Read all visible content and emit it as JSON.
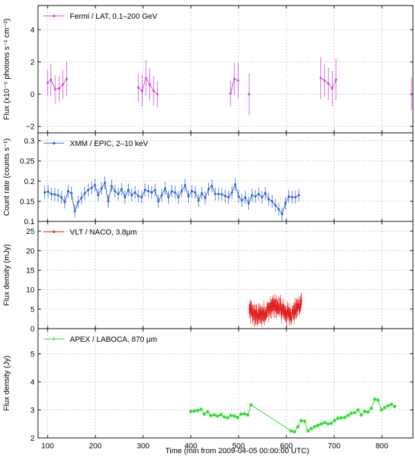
{
  "chart_data": {
    "type": "line",
    "xlabel": "Time (min from 2009-04-05 00:00:00 UTC)",
    "xlim": [
      80,
      865
    ],
    "xticks": [
      100,
      200,
      300,
      400,
      500,
      600,
      700,
      800
    ],
    "panels": [
      {
        "id": "fermi",
        "legend": "Fermi / LAT, 0.1–200 GeV",
        "ylabel": "Flux (x10⁻⁵ photons s⁻¹ cm⁻²)",
        "color": "#d040d0",
        "marker": "dot",
        "ylim": [
          -2.4,
          5.5
        ],
        "yticks": [
          -2,
          0,
          2,
          4
        ],
        "ytick_labels": [
          "−2",
          "0",
          "2",
          "4"
        ],
        "series": [
          {
            "x": [
              100,
              107,
              116,
              124,
              132,
              140
            ],
            "y": [
              0.7,
              0.9,
              0.3,
              0.35,
              0.6,
              0.95
            ],
            "err": [
              0.8,
              1.0,
              0.9,
              0.8,
              0.9,
              1.1
            ]
          },
          {
            "x": [
              290,
              298,
              306,
              314,
              322,
              330
            ],
            "y": [
              0.4,
              0.2,
              1.0,
              0.6,
              0.2,
              0.0
            ],
            "err": [
              0.9,
              1.0,
              1.1,
              1.0,
              0.9,
              0.8
            ]
          },
          {
            "x": [
              483,
              491,
              499
            ],
            "y": [
              0.05,
              0.95,
              0.85
            ],
            "err": [
              0.8,
              1.0,
              1.1
            ]
          },
          {
            "x": [
              522
            ],
            "y": [
              0.0
            ],
            "err": [
              1.3
            ]
          },
          {
            "x": [
              672,
              680,
              688,
              696,
              704
            ],
            "y": [
              1.0,
              0.85,
              0.65,
              0.35,
              0.9
            ],
            "err": [
              1.3,
              1.0,
              1.0,
              1.1,
              1.3
            ]
          },
          {
            "x": [
              862
            ],
            "y": [
              0.0
            ],
            "err": [
              1.0
            ]
          }
        ]
      },
      {
        "id": "xmm",
        "legend": "XMM / EPIC, 2–10 keV",
        "ylabel": "Count rate (counts s⁻¹)",
        "color": "#2a5fd8",
        "marker": "dot",
        "ylim": [
          0.1,
          0.32
        ],
        "yticks": [
          0.1,
          0.15,
          0.2,
          0.25,
          0.3
        ],
        "ytick_labels": [
          "0.1",
          "0.15",
          "0.2",
          "0.25",
          "0.3"
        ],
        "series": [
          {
            "x": [
              94,
              101,
              108,
              115,
              122,
              129,
              136,
              143,
              150,
              157,
              164,
              171,
              178,
              185,
              192,
              199,
              206,
              213,
              220,
              227,
              234,
              241,
              248,
              255,
              262,
              269,
              276,
              283,
              290,
              297,
              304,
              311,
              318,
              325,
              332,
              339,
              346,
              353,
              360,
              367,
              374,
              381,
              388,
              395,
              402,
              409,
              416,
              423,
              430,
              437,
              444,
              451,
              458,
              465,
              472,
              479,
              486,
              493,
              500,
              507,
              514,
              521,
              528,
              535,
              542,
              549,
              556,
              563,
              570,
              577,
              584,
              591,
              598,
              605,
              612,
              619,
              626
            ],
            "y": [
              0.172,
              0.174,
              0.168,
              0.167,
              0.165,
              0.16,
              0.148,
              0.175,
              0.17,
              0.125,
              0.148,
              0.158,
              0.17,
              0.178,
              0.183,
              0.19,
              0.165,
              0.182,
              0.196,
              0.15,
              0.188,
              0.175,
              0.168,
              0.18,
              0.16,
              0.178,
              0.165,
              0.172,
              0.163,
              0.16,
              0.178,
              0.175,
              0.172,
              0.178,
              0.15,
              0.165,
              0.182,
              0.16,
              0.175,
              0.172,
              0.16,
              0.176,
              0.19,
              0.162,
              0.175,
              0.172,
              0.152,
              0.17,
              0.158,
              0.18,
              0.188,
              0.168,
              0.168,
              0.167,
              0.163,
              0.16,
              0.172,
              0.192,
              0.162,
              0.152,
              0.16,
              0.145,
              0.165,
              0.162,
              0.168,
              0.16,
              0.17,
              0.155,
              0.15,
              0.14,
              0.13,
              0.118,
              0.145,
              0.162,
              0.16,
              0.16,
              0.165
            ],
            "err": 0.016
          }
        ]
      },
      {
        "id": "naco",
        "legend": "VLT / NACO, 3.8μm",
        "ylabel": "Flux density (mJy)",
        "color": "#e02020",
        "marker": "dense",
        "ylim": [
          0,
          27.5
        ],
        "yticks": [
          0,
          5,
          10,
          15,
          20,
          25
        ],
        "ytick_labels": [
          "0",
          "5",
          "10",
          "15",
          "20",
          "25"
        ],
        "series": [
          {
            "x_start": 522,
            "x_end": 632,
            "step": 0.55,
            "baseline": 4.5,
            "err": 1.3
          }
        ]
      },
      {
        "id": "laboca",
        "legend": "APEX / LABOCA, 870 μm",
        "ylabel": "Flux density (Jy)",
        "color": "#22dd22",
        "marker": "star",
        "ylim": [
          2,
          5.9
        ],
        "yticks": [
          2,
          3,
          4,
          5
        ],
        "ytick_labels": [
          "2",
          "3",
          "4",
          "5"
        ],
        "series": [
          {
            "x": [
              400,
              407,
              414,
              421,
              428,
              435,
              442,
              449,
              456,
              463,
              470,
              477,
              484,
              491,
              498,
              505,
              512,
              519,
              526,
              610,
              617,
              624,
              631,
              638,
              645,
              652,
              659,
              666,
              673,
              680,
              687,
              694,
              701,
              708,
              715,
              722,
              729,
              736,
              743,
              750,
              757,
              764,
              771,
              778,
              785,
              792,
              799,
              806,
              813,
              820,
              827
            ],
            "y": [
              2.95,
              2.96,
              2.98,
              3.02,
              2.85,
              2.93,
              2.8,
              2.82,
              2.78,
              2.83,
              2.75,
              2.72,
              2.8,
              2.78,
              2.73,
              2.85,
              2.86,
              2.82,
              3.18,
              2.25,
              2.22,
              2.4,
              2.62,
              2.6,
              2.25,
              2.33,
              2.4,
              2.45,
              2.5,
              2.55,
              2.5,
              2.52,
              2.62,
              2.7,
              2.72,
              2.73,
              2.8,
              2.88,
              2.9,
              3.0,
              2.82,
              2.95,
              2.92,
              3.05,
              3.38,
              3.35,
              3.0,
              3.08,
              3.15,
              3.2,
              3.12
            ],
            "break_after_index": 18
          }
        ]
      }
    ]
  }
}
